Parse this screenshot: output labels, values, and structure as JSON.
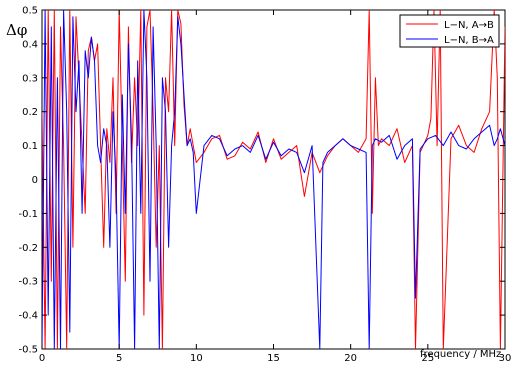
{
  "chart_data": {
    "type": "line",
    "xlabel": "frequency / MHz",
    "ylabel": "Δφ",
    "xlim": [
      0,
      30
    ],
    "ylim": [
      -0.5,
      0.5
    ],
    "xticks": [
      "0",
      "5",
      "10",
      "15",
      "20",
      "25",
      "30"
    ],
    "yticks": [
      "-0.5",
      "-0.4",
      "-0.3",
      "-0.2",
      "-0.1",
      "0",
      "0.1",
      "0.2",
      "0.3",
      "0.4",
      "0.5"
    ],
    "legend_position": "top-right",
    "grid": false,
    "series": [
      {
        "name": "L−N, A→B",
        "color": "#ff0000",
        "x": [
          0,
          0.2,
          0.4,
          0.6,
          0.8,
          1.0,
          1.2,
          1.4,
          1.6,
          1.8,
          2.0,
          2.2,
          2.4,
          2.6,
          2.8,
          3.0,
          3.2,
          3.4,
          3.6,
          3.8,
          4.0,
          4.2,
          4.4,
          4.6,
          4.8,
          5.0,
          5.2,
          5.4,
          5.6,
          5.8,
          6.0,
          6.2,
          6.4,
          6.6,
          6.8,
          7.0,
          7.2,
          7.4,
          7.6,
          7.8,
          8.0,
          8.2,
          8.4,
          8.6,
          8.8,
          9.0,
          9.2,
          9.4,
          9.6,
          9.8,
          10.0,
          10.5,
          11.0,
          11.5,
          12.0,
          12.5,
          13.0,
          13.5,
          14.0,
          14.5,
          15.0,
          15.5,
          16.0,
          16.5,
          17.0,
          17.5,
          18.0,
          18.5,
          19.0,
          19.5,
          20.0,
          20.5,
          21.0,
          21.2,
          21.4,
          21.6,
          21.8,
          22.0,
          22.5,
          23.0,
          23.5,
          24.0,
          24.2,
          24.5,
          25.0,
          25.2,
          25.4,
          25.6,
          25.8,
          26.0,
          26.5,
          27.0,
          27.5,
          28.0,
          28.5,
          29.0,
          29.3,
          29.5,
          29.7,
          30.0
        ],
        "values": [
          0.2,
          -0.5,
          0.5,
          -0.3,
          0.5,
          -0.5,
          0.45,
          0.1,
          -0.5,
          0.5,
          -0.2,
          0.48,
          0.3,
          0.1,
          -0.1,
          0.38,
          0.42,
          0.35,
          0.4,
          0.1,
          -0.2,
          0.15,
          0.05,
          0.3,
          -0.1,
          0.5,
          0.1,
          -0.3,
          0.45,
          0.05,
          0.3,
          0.1,
          0.5,
          -0.4,
          0.45,
          0.5,
          0.2,
          -0.2,
          0.1,
          -0.5,
          0.3,
          0.2,
          0.5,
          0.1,
          0.5,
          0.46,
          0.22,
          0.1,
          0.15,
          0.1,
          0.05,
          0.08,
          0.12,
          0.13,
          0.06,
          0.07,
          0.11,
          0.09,
          0.14,
          0.05,
          0.12,
          0.06,
          0.08,
          0.1,
          -0.05,
          0.08,
          0.02,
          0.07,
          0.1,
          0.12,
          0.1,
          0.08,
          0.12,
          0.5,
          -0.1,
          0.3,
          0.1,
          0.12,
          0.1,
          0.15,
          0.05,
          0.1,
          -0.5,
          0.08,
          0.13,
          0.18,
          0.5,
          0.1,
          0.5,
          -0.5,
          0.12,
          0.16,
          0.1,
          0.08,
          0.15,
          0.2,
          0.5,
          0.3,
          -0.5,
          0.45
        ]
      },
      {
        "name": "L−N, B→A",
        "color": "#0000ff",
        "x": [
          0,
          0.2,
          0.4,
          0.6,
          0.8,
          1.0,
          1.2,
          1.4,
          1.6,
          1.8,
          2.0,
          2.2,
          2.4,
          2.6,
          2.8,
          3.0,
          3.2,
          3.4,
          3.6,
          3.8,
          4.0,
          4.2,
          4.4,
          4.6,
          4.8,
          5.0,
          5.2,
          5.4,
          5.6,
          5.8,
          6.0,
          6.2,
          6.4,
          6.6,
          6.8,
          7.0,
          7.2,
          7.4,
          7.6,
          7.8,
          8.0,
          8.2,
          8.4,
          8.6,
          8.8,
          9.0,
          9.2,
          9.4,
          9.6,
          9.8,
          10.0,
          10.5,
          11.0,
          11.5,
          12.0,
          12.5,
          13.0,
          13.5,
          14.0,
          14.5,
          15.0,
          15.5,
          16.0,
          16.5,
          17.0,
          17.5,
          18.0,
          18.2,
          18.5,
          19.0,
          19.5,
          20.0,
          20.5,
          21.0,
          21.2,
          21.4,
          21.6,
          22.0,
          22.5,
          23.0,
          23.5,
          24.0,
          24.2,
          24.5,
          25.0,
          25.5,
          26.0,
          26.5,
          27.0,
          27.5,
          28.0,
          28.5,
          29.0,
          29.3,
          29.5,
          29.7,
          30.0
        ],
        "values": [
          -0.5,
          0.5,
          -0.4,
          0.45,
          -0.5,
          0.3,
          -0.5,
          0.5,
          0.2,
          -0.45,
          0.48,
          0.2,
          0.35,
          -0.1,
          0.38,
          0.3,
          0.42,
          0.35,
          0.1,
          0.05,
          0.15,
          0.1,
          -0.2,
          0.2,
          0.0,
          -0.5,
          0.25,
          -0.1,
          0.4,
          0.12,
          -0.5,
          0.35,
          -0.1,
          0.5,
          0.3,
          -0.3,
          0.45,
          0.1,
          -0.5,
          0.3,
          0.2,
          -0.2,
          0.1,
          0.2,
          0.48,
          0.4,
          0.25,
          0.1,
          0.12,
          0.08,
          -0.1,
          0.1,
          0.13,
          0.12,
          0.07,
          0.09,
          0.1,
          0.08,
          0.13,
          0.06,
          0.11,
          0.07,
          0.09,
          0.08,
          0.02,
          0.1,
          -0.5,
          0.05,
          0.08,
          0.1,
          0.12,
          0.1,
          0.09,
          0.08,
          -0.5,
          0.1,
          0.12,
          0.11,
          0.13,
          0.06,
          0.1,
          0.12,
          -0.35,
          0.09,
          0.12,
          0.13,
          0.1,
          0.14,
          0.1,
          0.09,
          0.12,
          0.14,
          0.16,
          0.1,
          0.12,
          0.15,
          0.1
        ]
      }
    ]
  }
}
